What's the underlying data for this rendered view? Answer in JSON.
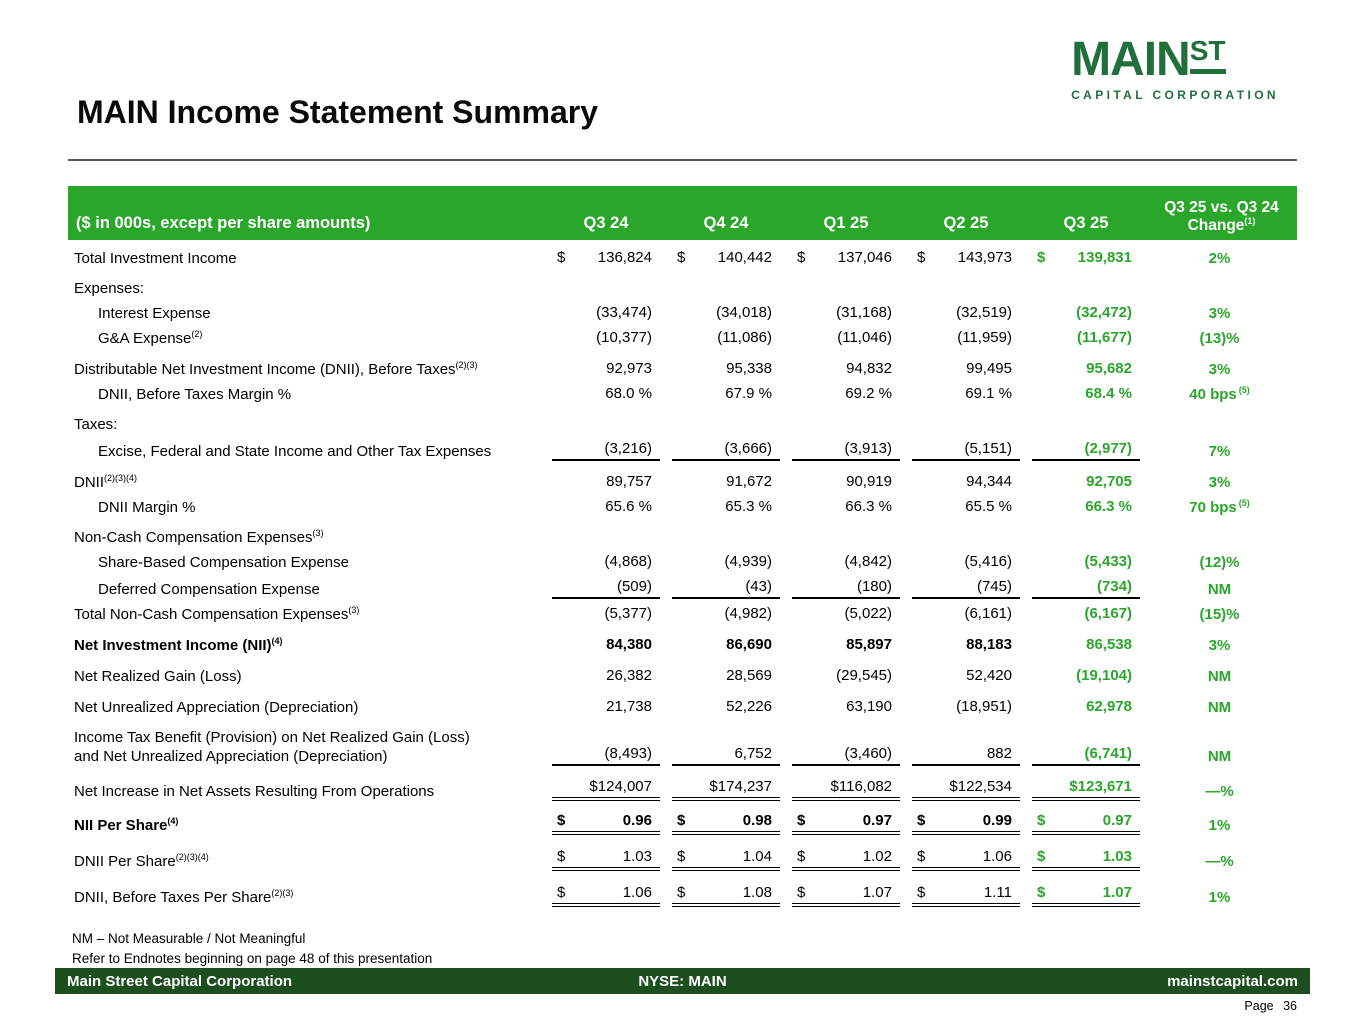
{
  "slide": {
    "title": "MAIN Income Statement Summary",
    "page_label": "Page 36"
  },
  "logo": {
    "main": "MAIN",
    "st": "ST",
    "subtitle": "CAPITAL CORPORATION"
  },
  "colors": {
    "bright_green": "#2aa62a",
    "dark_green": "#1d4e1d",
    "logo_green": "#21703b"
  },
  "table": {
    "header": {
      "label": "($ in 000s, except per share amounts)",
      "quarters": [
        "Q3 24",
        "Q4 24",
        "Q1 25",
        "Q2 25",
        "Q3 25"
      ],
      "change_line1": "Q3 25 vs. Q3 24",
      "change_line2": "Change",
      "change_sup": "(1)"
    },
    "rows": [
      {
        "label": "Total Investment Income",
        "dollar": true,
        "values": [
          "136,824",
          "140,442",
          "137,046",
          "143,973",
          "139,831"
        ],
        "change": "2%"
      },
      {
        "label": "Expenses:",
        "section": true,
        "gap": true
      },
      {
        "label": "Interest Expense",
        "indent": true,
        "values": [
          "(33,474)",
          "(34,018)",
          "(31,168)",
          "(32,519)",
          "(32,472)"
        ],
        "change": "3%"
      },
      {
        "label": "G&A Expense",
        "sup": "(2)",
        "indent": true,
        "values": [
          "(10,377)",
          "(11,086)",
          "(11,046)",
          "(11,959)",
          "(11,677)"
        ],
        "change": "(13)%"
      },
      {
        "label": "Distributable Net Investment Income (DNII), Before Taxes",
        "sup": "(2)(3)",
        "gap": true,
        "values": [
          "92,973",
          "95,338",
          "94,832",
          "99,495",
          "95,682"
        ],
        "change": "3%"
      },
      {
        "label": "DNII, Before Taxes Margin %",
        "indent": true,
        "values": [
          "68.0 %",
          "67.9 %",
          "69.2 %",
          "69.1 %",
          "68.4 %"
        ],
        "change": "40 bps",
        "change_sup": "(5)"
      },
      {
        "label": "Taxes:",
        "section": true,
        "gap": true
      },
      {
        "label": "Excise, Federal and State Income and Other Tax Expenses",
        "indent": true,
        "underline": "single",
        "values": [
          "(3,216)",
          "(3,666)",
          "(3,913)",
          "(5,151)",
          "(2,977)"
        ],
        "change": "7%"
      },
      {
        "label": "DNII",
        "sup": "(2)(3)(4)",
        "gap": true,
        "values": [
          "89,757",
          "91,672",
          "90,919",
          "94,344",
          "92,705"
        ],
        "change": "3%"
      },
      {
        "label": "DNII Margin %",
        "indent": true,
        "values": [
          "65.6 %",
          "65.3 %",
          "66.3 %",
          "65.5 %",
          "66.3 %"
        ],
        "change": "70 bps",
        "change_sup": "(5)"
      },
      {
        "label": "Non-Cash Compensation Expenses",
        "sup": "(3)",
        "section": true,
        "gap": true
      },
      {
        "label": "Share-Based Compensation Expense",
        "indent": true,
        "values": [
          "(4,868)",
          "(4,939)",
          "(4,842)",
          "(5,416)",
          "(5,433)"
        ],
        "change": "(12)%"
      },
      {
        "label": "Deferred Compensation Expense",
        "indent": true,
        "underline": "single",
        "values": [
          "(509)",
          "(43)",
          "(180)",
          "(745)",
          "(734)"
        ],
        "change": "NM"
      },
      {
        "label": "Total Non-Cash Compensation Expenses",
        "sup": "(3)",
        "values": [
          "(5,377)",
          "(4,982)",
          "(5,022)",
          "(6,161)",
          "(6,167)"
        ],
        "change": "(15)%"
      },
      {
        "label": "Net Investment Income (NII)",
        "sup": "(4)",
        "bold": true,
        "gap": true,
        "values": [
          "84,380",
          "86,690",
          "85,897",
          "88,183",
          "86,538"
        ],
        "change": "3%"
      },
      {
        "label": "Net Realized Gain (Loss)",
        "gap": true,
        "values": [
          "26,382",
          "28,569",
          "(29,545)",
          "52,420",
          "(19,104)"
        ],
        "change": "NM"
      },
      {
        "label": "Net Unrealized Appreciation (Depreciation)",
        "gap": true,
        "values": [
          "21,738",
          "52,226",
          "63,190",
          "(18,951)",
          "62,978"
        ],
        "change": "NM"
      },
      {
        "label": "Income Tax Benefit (Provision) on Net Realized Gain (Loss)",
        "label2": "and Net Unrealized Appreciation (Depreciation)",
        "gap": true,
        "underline": "single",
        "values": [
          "(8,493)",
          "6,752",
          "(3,460)",
          "882",
          "(6,741)"
        ],
        "change": "NM"
      },
      {
        "label": "Net Increase in Net Assets Resulting From Operations",
        "gap": true,
        "underline": "double",
        "values": [
          "$124,007",
          "$174,237",
          "$116,082",
          "$122,534",
          "$123,671"
        ],
        "change": "—%"
      },
      {
        "label": "NII Per Share",
        "sup": "(4)",
        "bold": true,
        "dollar": true,
        "gap": true,
        "pershare": true,
        "underline": "double",
        "values": [
          "0.96",
          "0.98",
          "0.97",
          "0.99",
          "0.97"
        ],
        "change": "1%"
      },
      {
        "label": "DNII Per Share",
        "sup": "(2)(3)(4)",
        "dollar": true,
        "gap": true,
        "pershare": true,
        "underline": "double",
        "values": [
          "1.03",
          "1.04",
          "1.02",
          "1.06",
          "1.03"
        ],
        "change": "—%"
      },
      {
        "label": "DNII, Before Taxes Per Share",
        "sup": "(2)(3)",
        "dollar": true,
        "gap": true,
        "pershare": true,
        "underline": "double",
        "values": [
          "1.06",
          "1.08",
          "1.07",
          "1.11",
          "1.07"
        ],
        "change": "1%"
      }
    ]
  },
  "footnotes": [
    "NM – Not Measurable / Not Meaningful",
    "Refer to Endnotes beginning on page 48 of this presentation"
  ],
  "footer": {
    "company": "Main Street Capital Corporation",
    "ticker": "NYSE: MAIN",
    "website": "mainstcapital.com"
  }
}
